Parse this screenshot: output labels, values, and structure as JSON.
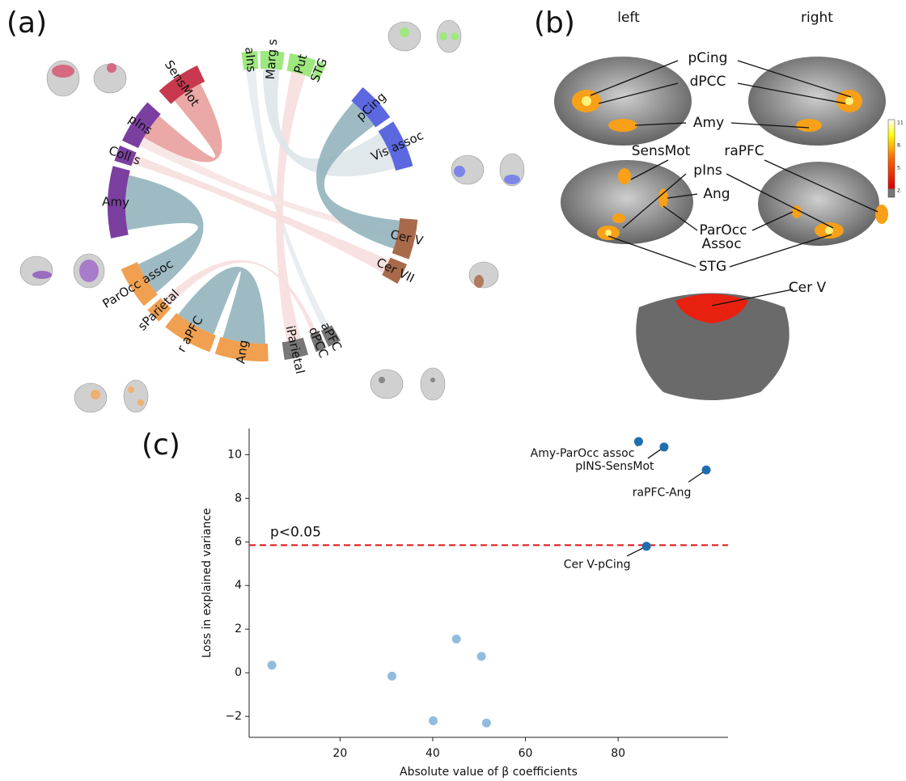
{
  "panel_a": {
    "label": "(a)",
    "segments": [
      "aIns",
      "Marg s",
      "Put",
      "STG",
      "pCing",
      "Vis assoc",
      "Cer V",
      "Cer VII",
      "aPFC",
      "dPCC",
      "iParietal",
      "Ang",
      "r aPFC",
      "sParietal",
      "ParOcc assoc",
      "Amy",
      "Coll s",
      "pIns",
      "SensMot"
    ]
  },
  "panel_b": {
    "label": "(b)",
    "left": "left",
    "right": "right",
    "regions": [
      "pCing",
      "dPCC",
      "Amy",
      "SensMot",
      "raPFC",
      "pIns",
      "Ang",
      "ParOcc",
      "Assoc",
      "STG",
      "Cer V"
    ],
    "colorbar_ticks": [
      "11",
      "8.",
      "5.",
      "2."
    ]
  },
  "chart_data": {
    "type": "scatter",
    "panel_label": "(c)",
    "xlabel": "Absolute value of β coefficients",
    "ylabel": "Loss in explained variance",
    "xlim": [
      0.4,
      103.7
    ],
    "ylim": [
      -2.96,
      11.2
    ],
    "xticks": [
      20,
      40,
      60,
      80
    ],
    "yticks": [
      {
        "value": -2,
        "label": "−2"
      },
      0,
      2,
      4,
      6,
      8,
      10
    ],
    "series": [
      {
        "color": "#1f6fb0",
        "x": [
          84.4,
          89.9,
          99,
          86.1
        ],
        "values": [
          10.6,
          10.35,
          9.3,
          5.8
        ],
        "labels": [
          "Amy-ParOcc assoc",
          "pINS-SensMot",
          "raPFC-Ang",
          "Cer V-pCing"
        ]
      },
      {
        "color": "#92bcdd",
        "x": [
          5.3,
          31.2,
          40.1,
          45.1,
          50.5,
          51.6
        ],
        "values": [
          0.35,
          -0.15,
          -2.2,
          1.55,
          0.75,
          -2.3
        ]
      }
    ],
    "hline": {
      "value": 5.85,
      "label": "p<0.05",
      "color": "#e02222"
    }
  }
}
